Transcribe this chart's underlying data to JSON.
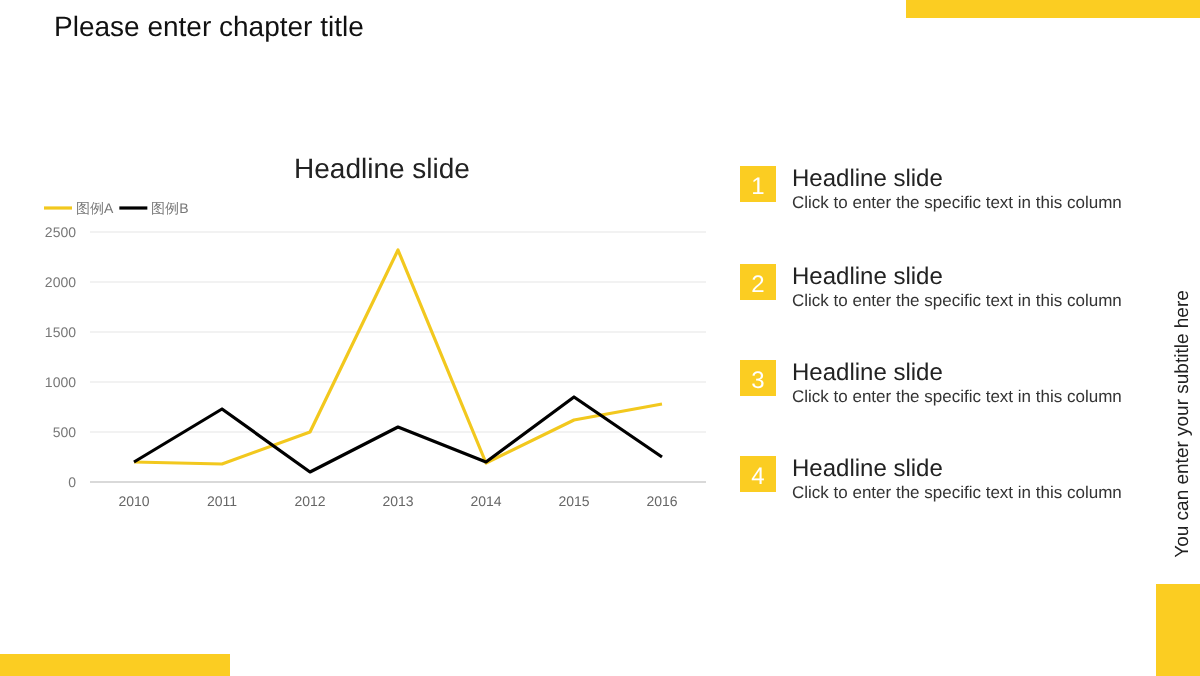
{
  "chart_data": {
    "type": "line",
    "title": "Headline slide",
    "annotations": [
      "Please enter chapter title",
      "1",
      "Headline slide",
      "Click to enter the specific text in this column",
      "2",
      "Headline slide",
      "Click to enter the specific text in this column",
      "3",
      "Headline slide",
      "Click to enter the specific text in this column",
      "4",
      "Headline slide",
      "Click to enter the specific text in this column",
      "You can enter your subtitle here"
    ],
    "categories": [
      "2010",
      "2011",
      "2012",
      "2013",
      "2014",
      "2015",
      "2016"
    ],
    "series": [
      {
        "name": "图例A",
        "color": "#f2c81e",
        "values": [
          200,
          180,
          500,
          2320,
          190,
          620,
          780
        ]
      },
      {
        "name": "图例B",
        "color": "#000000",
        "values": [
          200,
          730,
          100,
          550,
          200,
          850,
          250
        ]
      }
    ],
    "ylim": [
      0,
      2500
    ],
    "yticks": [
      0,
      500,
      1000,
      1500,
      2000,
      2500
    ],
    "grid": "y",
    "legend": "top left"
  }
}
